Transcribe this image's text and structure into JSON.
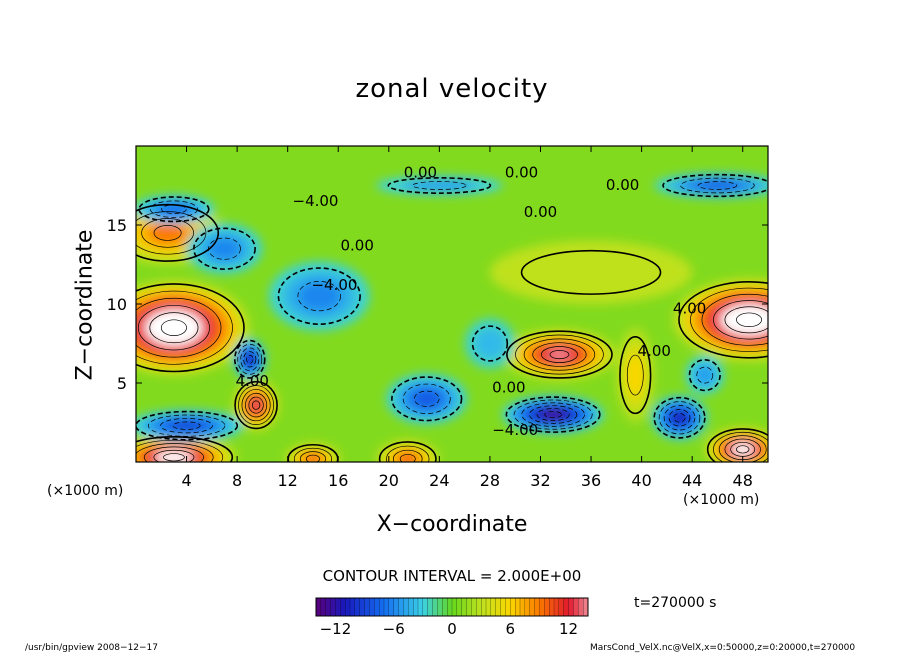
{
  "chart_data": {
    "type": "heatmap",
    "title": "zonal velocity",
    "xlabel": "X−coordinate",
    "ylabel": "Z−coordinate",
    "x_unit_left": "(×1000 m)",
    "x_unit_right": "(×1000 m)",
    "xlim": [
      0,
      50
    ],
    "ylim": [
      0,
      20
    ],
    "x_ticks": [
      4,
      8,
      12,
      16,
      20,
      24,
      28,
      32,
      36,
      40,
      44,
      48
    ],
    "y_ticks": [
      5,
      10,
      15
    ],
    "contour_interval_text": "CONTOUR INTERVAL = 2.000E+00",
    "time_text": "t=270000 s",
    "colorbar": {
      "min": -14,
      "max": 14,
      "ticks": [
        -12,
        -6,
        0,
        6,
        12
      ],
      "tick_labels": [
        "−12",
        "−6",
        "0",
        "6",
        "12"
      ]
    },
    "contour_labels": [
      {
        "text": "0.00",
        "x": 22.5,
        "y": 18.0
      },
      {
        "text": "0.00",
        "x": 30.5,
        "y": 18.0
      },
      {
        "text": "0.00",
        "x": 38.5,
        "y": 17.2
      },
      {
        "text": "−4.00",
        "x": 14.2,
        "y": 16.2
      },
      {
        "text": "0.00",
        "x": 32.0,
        "y": 15.5
      },
      {
        "text": "0.00",
        "x": 17.5,
        "y": 13.4
      },
      {
        "text": "−4.00",
        "x": 15.7,
        "y": 10.9
      },
      {
        "text": "0.00",
        "x": 29.5,
        "y": 4.4
      },
      {
        "text": "−4.00",
        "x": 30.0,
        "y": 1.7
      },
      {
        "text": "4.00",
        "x": 41.0,
        "y": 6.7
      },
      {
        "text": "4.00",
        "x": 43.8,
        "y": 9.4
      },
      {
        "text": "4.00",
        "x": 9.2,
        "y": 4.8
      }
    ],
    "field_features": [
      {
        "kind": "jet",
        "x": 3.0,
        "y": 8.5,
        "rx": 6.0,
        "ry": 3.0,
        "value": 18
      },
      {
        "kind": "jet",
        "x": 2.5,
        "y": 14.5,
        "rx": 4.5,
        "ry": 2.0,
        "value": 8
      },
      {
        "kind": "jet",
        "x": 48.5,
        "y": 9.0,
        "rx": 6.0,
        "ry": 2.6,
        "value": 18
      },
      {
        "kind": "jet",
        "x": 33.5,
        "y": 6.8,
        "rx": 4.5,
        "ry": 1.6,
        "value": 13
      },
      {
        "kind": "jet",
        "x": 9.5,
        "y": 3.6,
        "rx": 1.8,
        "ry": 1.6,
        "value": 12
      },
      {
        "kind": "jet",
        "x": 14.0,
        "y": 0.2,
        "rx": 2.2,
        "ry": 1.0,
        "value": 9
      },
      {
        "kind": "jet",
        "x": 21.5,
        "y": 0.2,
        "rx": 2.5,
        "ry": 1.2,
        "value": 9
      },
      {
        "kind": "jet",
        "x": 48.0,
        "y": 0.8,
        "rx": 3.0,
        "ry": 1.4,
        "value": 15
      },
      {
        "kind": "jet",
        "x": 3.0,
        "y": 0.3,
        "rx": 5.0,
        "ry": 1.4,
        "value": 15
      },
      {
        "kind": "jet",
        "x": 39.5,
        "y": 5.5,
        "rx": 1.5,
        "ry": 3.0,
        "value": 5
      },
      {
        "kind": "jet",
        "x": 36.0,
        "y": 12.0,
        "rx": 8.0,
        "ry": 2.0,
        "value": 2
      },
      {
        "kind": "counterflow",
        "x": 33.0,
        "y": 3.0,
        "rx": 4.0,
        "ry": 1.2,
        "value": -12
      },
      {
        "kind": "counterflow",
        "x": 43.0,
        "y": 2.8,
        "rx": 2.2,
        "ry": 1.4,
        "value": -10
      },
      {
        "kind": "counterflow",
        "x": 23.0,
        "y": 4.0,
        "rx": 3.2,
        "ry": 1.6,
        "value": -7
      },
      {
        "kind": "counterflow",
        "x": 4.0,
        "y": 2.3,
        "rx": 4.5,
        "ry": 1.0,
        "value": -8
      },
      {
        "kind": "counterflow",
        "x": 9.0,
        "y": 6.5,
        "rx": 1.3,
        "ry": 1.3,
        "value": -10
      },
      {
        "kind": "counterflow",
        "x": 14.5,
        "y": 10.5,
        "rx": 4.0,
        "ry": 2.2,
        "value": -5
      },
      {
        "kind": "counterflow",
        "x": 7.0,
        "y": 13.5,
        "rx": 3.0,
        "ry": 1.6,
        "value": -5
      },
      {
        "kind": "counterflow",
        "x": 3.0,
        "y": 16.0,
        "rx": 3.2,
        "ry": 0.9,
        "value": -6
      },
      {
        "kind": "counterflow",
        "x": 24.0,
        "y": 17.5,
        "rx": 5.0,
        "ry": 0.6,
        "value": -4
      },
      {
        "kind": "counterflow",
        "x": 46.0,
        "y": 17.5,
        "rx": 5.0,
        "ry": 0.8,
        "value": -7
      },
      {
        "kind": "counterflow",
        "x": 28.0,
        "y": 7.5,
        "rx": 2.0,
        "ry": 1.6,
        "value": -3
      },
      {
        "kind": "counterflow",
        "x": 45.0,
        "y": 5.5,
        "rx": 1.5,
        "ry": 1.2,
        "value": -4
      }
    ]
  },
  "footer": {
    "left": "/usr/bin/gpview   2008−12−17",
    "right": "MarsCond_VelX.nc@VelX,x=0:50000,z=0:20000,t=270000"
  },
  "colors": {
    "background": "#ffffff",
    "positive_extreme": "#ffffff",
    "positive_high": "#e8243a",
    "neutral": "#66d61e",
    "negative_high": "#1b2ed1"
  }
}
